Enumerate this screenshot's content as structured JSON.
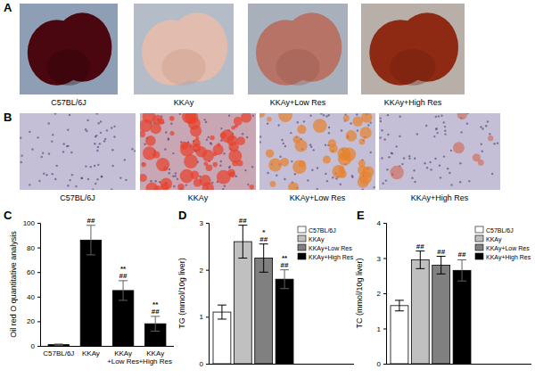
{
  "figure": {
    "photos": {
      "title": "A",
      "captions": [
        "C57BL/6J",
        "KKAy",
        "KKAy+Low Res",
        "KKAy+High Res"
      ]
    },
    "histology": {
      "title": "B",
      "captions": [
        "C57BL/6J",
        "KKAy",
        "KKAy+Low Res",
        "KKAy+High Res"
      ]
    }
  },
  "chart_data": [
    {
      "type": "bar",
      "title": "C",
      "y_label": "Oil red O quantitative analysis",
      "categories": [
        "C57BL/6J",
        "KKAy",
        "KKAy\n+Low Res",
        "KKAy\n+High Res"
      ],
      "values": [
        1,
        86,
        45,
        18
      ],
      "errors": [
        0.5,
        12,
        8,
        6
      ],
      "annotations": [
        null,
        [
          "##"
        ],
        [
          "**",
          "##"
        ],
        [
          "**",
          "##"
        ]
      ],
      "color": "#000000",
      "ylim": [
        0,
        100
      ],
      "yticks": [
        0,
        20,
        40,
        60,
        80,
        100
      ]
    },
    {
      "type": "bar",
      "title": "D",
      "y_label": "TG (mmol/10g liver)",
      "categories": [
        null
      ],
      "series": [
        {
          "name": "C57BL/6J",
          "color": "#ffffff",
          "values": [
            1.1
          ],
          "errors": [
            0.15
          ],
          "annotations": [
            null
          ]
        },
        {
          "name": "KKAy",
          "color": "#c0c0c0",
          "values": [
            2.6
          ],
          "errors": [
            0.35
          ],
          "annotations": [
            [
              "##"
            ]
          ]
        },
        {
          "name": "KKAy+Low Res",
          "color": "#808080",
          "values": [
            2.25
          ],
          "errors": [
            0.3
          ],
          "annotations": [
            [
              "*",
              "##"
            ]
          ]
        },
        {
          "name": "KKAy+High Res",
          "color": "#000000",
          "values": [
            1.8
          ],
          "errors": [
            0.2
          ],
          "annotations": [
            [
              "**",
              "##"
            ]
          ]
        }
      ],
      "ylim": [
        0,
        3
      ],
      "yticks": [
        0,
        1,
        2,
        3
      ],
      "legend": "upper right",
      "tick_labels": "y"
    },
    {
      "type": "bar",
      "title": "E",
      "y_label": "TC (mmol/10g liver)",
      "categories": [
        null
      ],
      "series": [
        {
          "name": "C57BL/6J",
          "color": "#ffffff",
          "values": [
            1.65
          ],
          "errors": [
            0.15
          ],
          "annotations": [
            null
          ]
        },
        {
          "name": "KKAy",
          "color": "#c0c0c0",
          "values": [
            2.95
          ],
          "errors": [
            0.25
          ],
          "annotations": [
            [
              "##"
            ]
          ]
        },
        {
          "name": "KKAy+Low Res",
          "color": "#808080",
          "values": [
            2.8
          ],
          "errors": [
            0.25
          ],
          "annotations": [
            [
              "##"
            ]
          ]
        },
        {
          "name": "KKAy+High Res",
          "color": "#000000",
          "values": [
            2.65
          ],
          "errors": [
            0.3
          ],
          "annotations": [
            [
              "##"
            ]
          ]
        }
      ],
      "ylim": [
        0,
        4
      ],
      "yticks": [
        0,
        1,
        2,
        3,
        4
      ],
      "legend": "upper right",
      "tick_labels": "y"
    }
  ]
}
